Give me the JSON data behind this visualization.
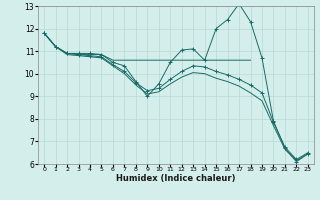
{
  "xlabel": "Humidex (Indice chaleur)",
  "bg_color": "#d4eeec",
  "grid_color": "#b8d8d6",
  "line_color": "#1a6b65",
  "xlim": [
    -0.5,
    23.5
  ],
  "ylim": [
    6,
    13
  ],
  "xticks": [
    0,
    1,
    2,
    3,
    4,
    5,
    6,
    7,
    8,
    9,
    10,
    11,
    12,
    13,
    14,
    15,
    16,
    17,
    18,
    19,
    20,
    21,
    22,
    23
  ],
  "yticks": [
    6,
    7,
    8,
    9,
    10,
    11,
    12,
    13
  ],
  "series": [
    {
      "x": [
        0,
        1,
        2,
        3,
        4,
        5,
        6,
        7,
        8,
        9,
        10,
        11,
        12,
        13,
        14,
        15,
        16,
        17,
        18,
        19,
        20,
        21,
        22,
        23
      ],
      "y": [
        11.8,
        11.2,
        10.9,
        10.9,
        10.9,
        10.85,
        10.5,
        10.35,
        9.65,
        9.0,
        9.55,
        10.5,
        11.05,
        11.1,
        10.6,
        12.0,
        12.4,
        13.1,
        12.3,
        10.7,
        7.9,
        6.7,
        6.1,
        6.45
      ],
      "marker": true
    },
    {
      "x": [
        0,
        1,
        2,
        3,
        4,
        5,
        6,
        7,
        8,
        9,
        10,
        11,
        12,
        13,
        14,
        15,
        16,
        17,
        18
      ],
      "y": [
        11.8,
        11.2,
        10.9,
        10.85,
        10.85,
        10.85,
        10.6,
        10.6,
        10.6,
        10.6,
        10.6,
        10.6,
        10.6,
        10.6,
        10.6,
        10.6,
        10.6,
        10.6,
        10.6
      ],
      "marker": false
    },
    {
      "x": [
        0,
        1,
        2,
        3,
        4,
        5,
        6,
        7,
        8,
        9,
        10,
        11,
        12,
        13,
        14,
        15,
        16,
        17,
        18,
        19,
        20,
        21,
        22,
        23
      ],
      "y": [
        11.8,
        11.2,
        10.9,
        10.85,
        10.8,
        10.75,
        10.4,
        10.1,
        9.6,
        9.25,
        9.35,
        9.75,
        10.1,
        10.35,
        10.3,
        10.1,
        9.95,
        9.75,
        9.5,
        9.15,
        7.85,
        6.75,
        6.2,
        6.5
      ],
      "marker": true
    },
    {
      "x": [
        0,
        1,
        2,
        3,
        4,
        5,
        6,
        7,
        8,
        9,
        10,
        11,
        12,
        13,
        14,
        15,
        16,
        17,
        18,
        19,
        20,
        21,
        22,
        23
      ],
      "y": [
        11.8,
        11.2,
        10.85,
        10.8,
        10.75,
        10.7,
        10.35,
        10.0,
        9.5,
        9.1,
        9.2,
        9.55,
        9.85,
        10.05,
        10.0,
        9.8,
        9.65,
        9.45,
        9.15,
        8.8,
        7.7,
        6.65,
        6.15,
        6.45
      ],
      "marker": false
    }
  ]
}
